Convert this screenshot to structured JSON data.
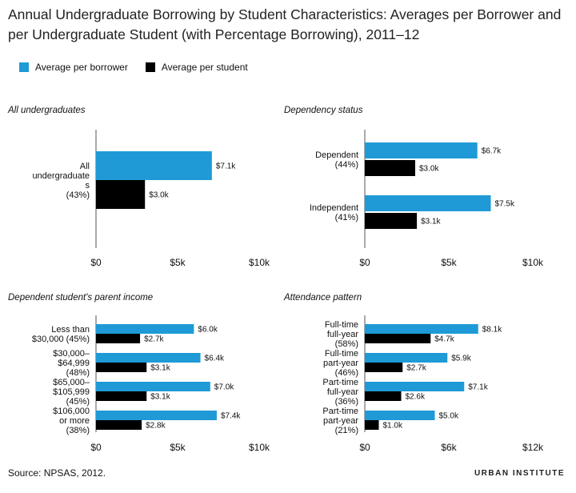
{
  "title": "Annual Undergraduate Borrowing by Student Characteristics: Averages per Borrower and per Undergraduate Student (with Percentage Borrowing), 2011–12",
  "legend": {
    "items": [
      {
        "label": "Average per borrower",
        "color": "#1f9ad6"
      },
      {
        "label": "Average per student",
        "color": "#000000"
      }
    ]
  },
  "source": "Source: NPSAS, 2012.",
  "brand": "URBAN INSTITUTE",
  "chart_data": [
    {
      "type": "bar",
      "orientation": "horizontal",
      "title": "All undergraduates",
      "categories": [
        [
          "All",
          "undergraduate",
          "s",
          "(43%)"
        ]
      ],
      "series": [
        {
          "name": "Average per borrower",
          "values": [
            7.1
          ],
          "labels": [
            "$7.1k"
          ]
        },
        {
          "name": "Average per student",
          "values": [
            3.0
          ],
          "labels": [
            "$3.0k"
          ]
        }
      ],
      "xlim": [
        0,
        10
      ],
      "xticks": [
        0,
        5,
        10
      ],
      "xtick_labels": [
        "$0",
        "$5k",
        "$10k"
      ]
    },
    {
      "type": "bar",
      "orientation": "horizontal",
      "title": "Dependency status",
      "categories": [
        [
          "Dependent",
          "(44%)"
        ],
        [
          "Independent",
          "(41%)"
        ]
      ],
      "series": [
        {
          "name": "Average per borrower",
          "values": [
            6.7,
            7.5
          ],
          "labels": [
            "$6.7k",
            "$7.5k"
          ]
        },
        {
          "name": "Average per student",
          "values": [
            3.0,
            3.1
          ],
          "labels": [
            "$3.0k",
            "$3.1k"
          ]
        }
      ],
      "xlim": [
        0,
        10
      ],
      "xticks": [
        0,
        5,
        10
      ],
      "xtick_labels": [
        "$0",
        "$5k",
        "$10k"
      ]
    },
    {
      "type": "bar",
      "orientation": "horizontal",
      "title": "Dependent student's parent income",
      "categories": [
        [
          "Less than",
          "$30,000 (45%)"
        ],
        [
          "$30,000–",
          "$64,999",
          "(48%)"
        ],
        [
          "$65,000–",
          "$105,999",
          "(45%)"
        ],
        [
          "$106,000",
          "or more",
          "(38%)"
        ]
      ],
      "series": [
        {
          "name": "Average per borrower",
          "values": [
            6.0,
            6.4,
            7.0,
            7.4
          ],
          "labels": [
            "$6.0k",
            "$6.4k",
            "$7.0k",
            "$7.4k"
          ]
        },
        {
          "name": "Average per student",
          "values": [
            2.7,
            3.1,
            3.1,
            2.8
          ],
          "labels": [
            "$2.7k",
            "$3.1k",
            "$3.1k",
            "$2.8k"
          ]
        }
      ],
      "xlim": [
        0,
        10
      ],
      "xticks": [
        0,
        5,
        10
      ],
      "xtick_labels": [
        "$0",
        "$5k",
        "$10k"
      ]
    },
    {
      "type": "bar",
      "orientation": "horizontal",
      "title": "Attendance pattern",
      "categories": [
        [
          "Full-time",
          "full-year",
          "(58%)"
        ],
        [
          "Full-time",
          "part-year",
          "(46%)"
        ],
        [
          "Part-time",
          "full-year",
          "(36%)"
        ],
        [
          "Part-time",
          "part-year",
          "(21%)"
        ]
      ],
      "series": [
        {
          "name": "Average per borrower",
          "values": [
            8.1,
            5.9,
            7.1,
            5.0
          ],
          "labels": [
            "$8.1k",
            "$5.9k",
            "$7.1k",
            "$5.0k"
          ]
        },
        {
          "name": "Average per student",
          "values": [
            4.7,
            2.7,
            2.6,
            1.0
          ],
          "labels": [
            "$4.7k",
            "$2.7k",
            "$2.6k",
            "$1.0k"
          ]
        }
      ],
      "xlim": [
        0,
        12
      ],
      "xticks": [
        0,
        6,
        12
      ],
      "xtick_labels": [
        "$0",
        "$6k",
        "$12k"
      ]
    }
  ]
}
